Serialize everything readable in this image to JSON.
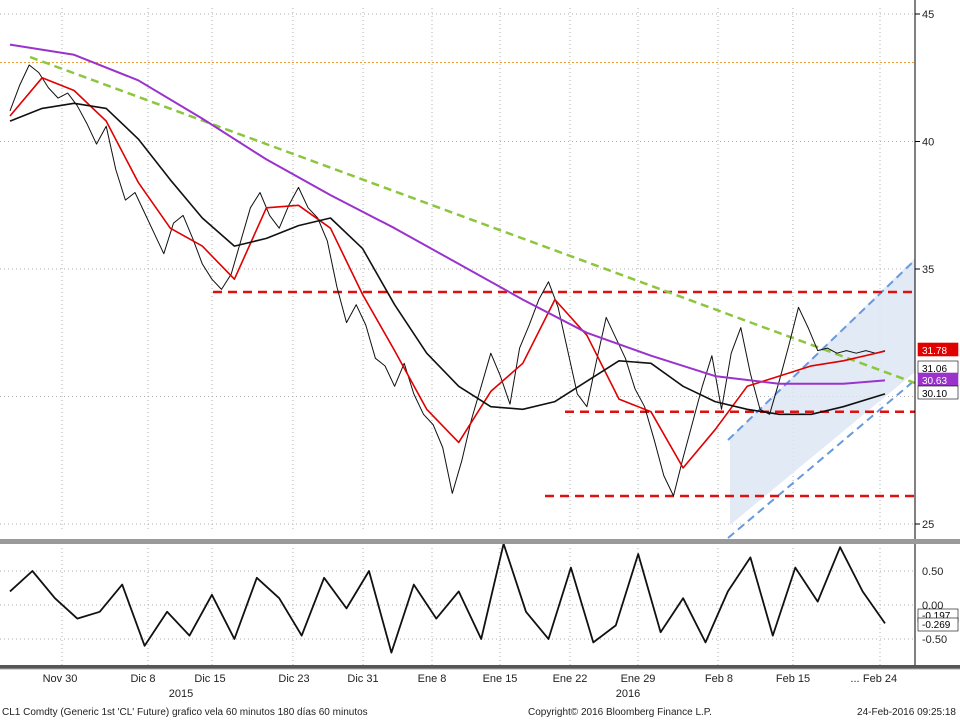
{
  "colors": {
    "price": "#111111",
    "ma_fast": "#e00000",
    "ma_slow": "#111111",
    "ma_long": "#9933cc",
    "downtrend": "#8cc63f",
    "support": "#e01010",
    "channel": "#6699dd",
    "channel_fill": "#dde6f5",
    "orange_level": "#f0a030",
    "grid": "#b0b0b0"
  },
  "footer": {
    "left": "CL1 Comdty (Generic 1st 'CL' Future) grafico vela 60 minutos 180 días 60 minutos",
    "center": "Copyright© 2016 Bloomberg Finance L.P.",
    "right": "24-Feb-2016 09:25:18"
  },
  "chart_data": [
    {
      "type": "line",
      "panel": "price",
      "yticks": [
        "45",
        "40",
        "35",
        "25"
      ],
      "ylim": [
        25,
        45
      ],
      "x_labels": [
        "Nov 30",
        "Dic 8",
        "Dic 15",
        "Dic 23",
        "Dic 31",
        "Ene 8",
        "Ene 15",
        "Ene 22",
        "Ene 29",
        "Feb 8",
        "Feb 15",
        "...",
        "Feb 24"
      ],
      "year_labels": [
        "2015",
        "2016"
      ],
      "price_tags": [
        {
          "label": "31.78",
          "value": 31.78,
          "color": "#e00000"
        },
        {
          "label": "31.06",
          "value": 31.06,
          "color": "#ffffff"
        },
        {
          "label": "30.63",
          "value": 30.63,
          "color": "#9933cc"
        },
        {
          "label": "30.10",
          "value": 30.1,
          "color": "#ffffff"
        }
      ],
      "levels": {
        "orange": 43.1,
        "resistance": 34.1,
        "support_mid": 29.4,
        "support_low": 26.1
      },
      "series": [
        {
          "key": "price",
          "x": [
            0,
            3,
            6,
            9,
            12,
            15,
            18,
            21,
            24,
            27,
            30,
            33,
            36,
            39,
            42,
            45,
            48,
            51,
            54,
            57,
            60,
            63,
            66,
            69,
            72,
            75,
            78,
            81,
            84,
            87,
            90,
            93,
            96,
            99,
            102,
            105,
            108,
            111,
            114,
            117,
            120,
            123,
            126,
            129,
            132,
            135,
            138,
            141,
            144,
            147,
            150,
            153,
            156,
            159,
            162,
            165,
            168,
            171,
            174,
            177,
            180,
            183,
            186,
            189,
            192,
            195,
            198,
            201,
            204,
            207,
            210,
            213,
            216,
            219,
            222,
            225,
            228,
            231,
            234,
            237,
            240,
            243,
            246,
            249,
            252,
            255,
            258,
            261,
            264,
            267,
            270,
            273
          ],
          "values": [
            41.2,
            42.2,
            43.0,
            42.7,
            42.1,
            41.7,
            41.9,
            41.4,
            40.7,
            39.9,
            40.6,
            38.9,
            37.7,
            38.0,
            37.2,
            36.4,
            35.6,
            36.8,
            37.1,
            36.2,
            35.2,
            34.6,
            34.2,
            34.8,
            36.1,
            37.4,
            38.0,
            37.1,
            36.6,
            37.5,
            38.2,
            37.4,
            37.0,
            36.1,
            34.3,
            32.9,
            33.6,
            32.8,
            31.5,
            31.2,
            30.4,
            31.3,
            30.1,
            29.3,
            28.9,
            28.0,
            26.2,
            27.5,
            29.1,
            30.4,
            31.7,
            30.8,
            29.7,
            31.9,
            32.8,
            33.8,
            34.5,
            33.5,
            31.8,
            30.1,
            29.6,
            31.4,
            33.1,
            32.3,
            31.5,
            30.3,
            29.6,
            28.3,
            26.9,
            26.1,
            27.6,
            29.0,
            30.4,
            31.6,
            29.5,
            31.7,
            32.7,
            30.9,
            29.5,
            29.3,
            30.6,
            32.0,
            33.5,
            32.7,
            31.8,
            31.9,
            31.7,
            31.8,
            31.7,
            31.8,
            31.7,
            31.8
          ]
        },
        {
          "key": "ma_fast",
          "x": [
            0,
            10,
            20,
            30,
            40,
            50,
            60,
            70,
            80,
            90,
            100,
            110,
            120,
            130,
            140,
            150,
            160,
            170,
            180,
            190,
            200,
            210,
            220,
            230,
            240,
            250,
            260,
            273
          ],
          "values": [
            41.0,
            42.5,
            42.0,
            40.8,
            38.4,
            36.6,
            35.9,
            34.6,
            37.4,
            37.5,
            36.6,
            34.0,
            31.8,
            29.5,
            28.2,
            30.2,
            31.3,
            33.8,
            32.4,
            29.9,
            29.4,
            27.2,
            28.7,
            30.4,
            30.8,
            31.2,
            31.4,
            31.78
          ]
        },
        {
          "key": "ma_slow",
          "x": [
            0,
            10,
            20,
            30,
            40,
            50,
            60,
            70,
            80,
            90,
            100,
            110,
            120,
            130,
            140,
            150,
            160,
            170,
            180,
            190,
            200,
            210,
            220,
            230,
            240,
            250,
            260,
            273
          ],
          "values": [
            40.8,
            41.3,
            41.5,
            41.3,
            40.1,
            38.5,
            37.0,
            35.9,
            36.2,
            36.7,
            37.0,
            35.8,
            33.6,
            31.7,
            30.4,
            29.6,
            29.5,
            29.8,
            30.6,
            31.4,
            31.3,
            30.4,
            29.8,
            29.5,
            29.3,
            29.3,
            29.6,
            30.1
          ]
        },
        {
          "key": "ma_long",
          "x": [
            0,
            20,
            40,
            60,
            80,
            100,
            120,
            140,
            160,
            180,
            200,
            220,
            240,
            260,
            273
          ],
          "values": [
            43.8,
            43.4,
            42.4,
            40.9,
            39.3,
            37.9,
            36.6,
            35.2,
            33.8,
            32.5,
            31.6,
            30.8,
            30.5,
            30.5,
            30.63
          ]
        }
      ]
    },
    {
      "type": "line",
      "panel": "oscillator",
      "yticks": [
        "0.50",
        "0.00",
        "-0.50"
      ],
      "ylim": [
        -0.85,
        0.85
      ],
      "value_tag": "-0.269",
      "value_tag_2": "-0.197",
      "series": [
        {
          "key": "osc",
          "x": [
            0,
            7,
            14,
            21,
            28,
            35,
            42,
            49,
            56,
            63,
            70,
            77,
            84,
            91,
            98,
            105,
            112,
            119,
            126,
            133,
            140,
            147,
            154,
            161,
            168,
            175,
            182,
            189,
            196,
            203,
            210,
            217,
            224,
            231,
            238,
            245,
            252,
            259,
            266,
            273
          ],
          "values": [
            0.2,
            0.5,
            0.1,
            -0.2,
            -0.1,
            0.3,
            -0.6,
            -0.1,
            -0.45,
            0.15,
            -0.5,
            0.4,
            0.1,
            -0.45,
            0.4,
            -0.05,
            0.5,
            -0.7,
            0.3,
            -0.2,
            0.2,
            -0.5,
            0.9,
            -0.1,
            -0.5,
            0.55,
            -0.55,
            -0.3,
            0.75,
            -0.4,
            0.1,
            -0.55,
            0.2,
            0.7,
            -0.45,
            0.55,
            0.05,
            0.85,
            0.2,
            -0.27
          ]
        }
      ]
    }
  ]
}
